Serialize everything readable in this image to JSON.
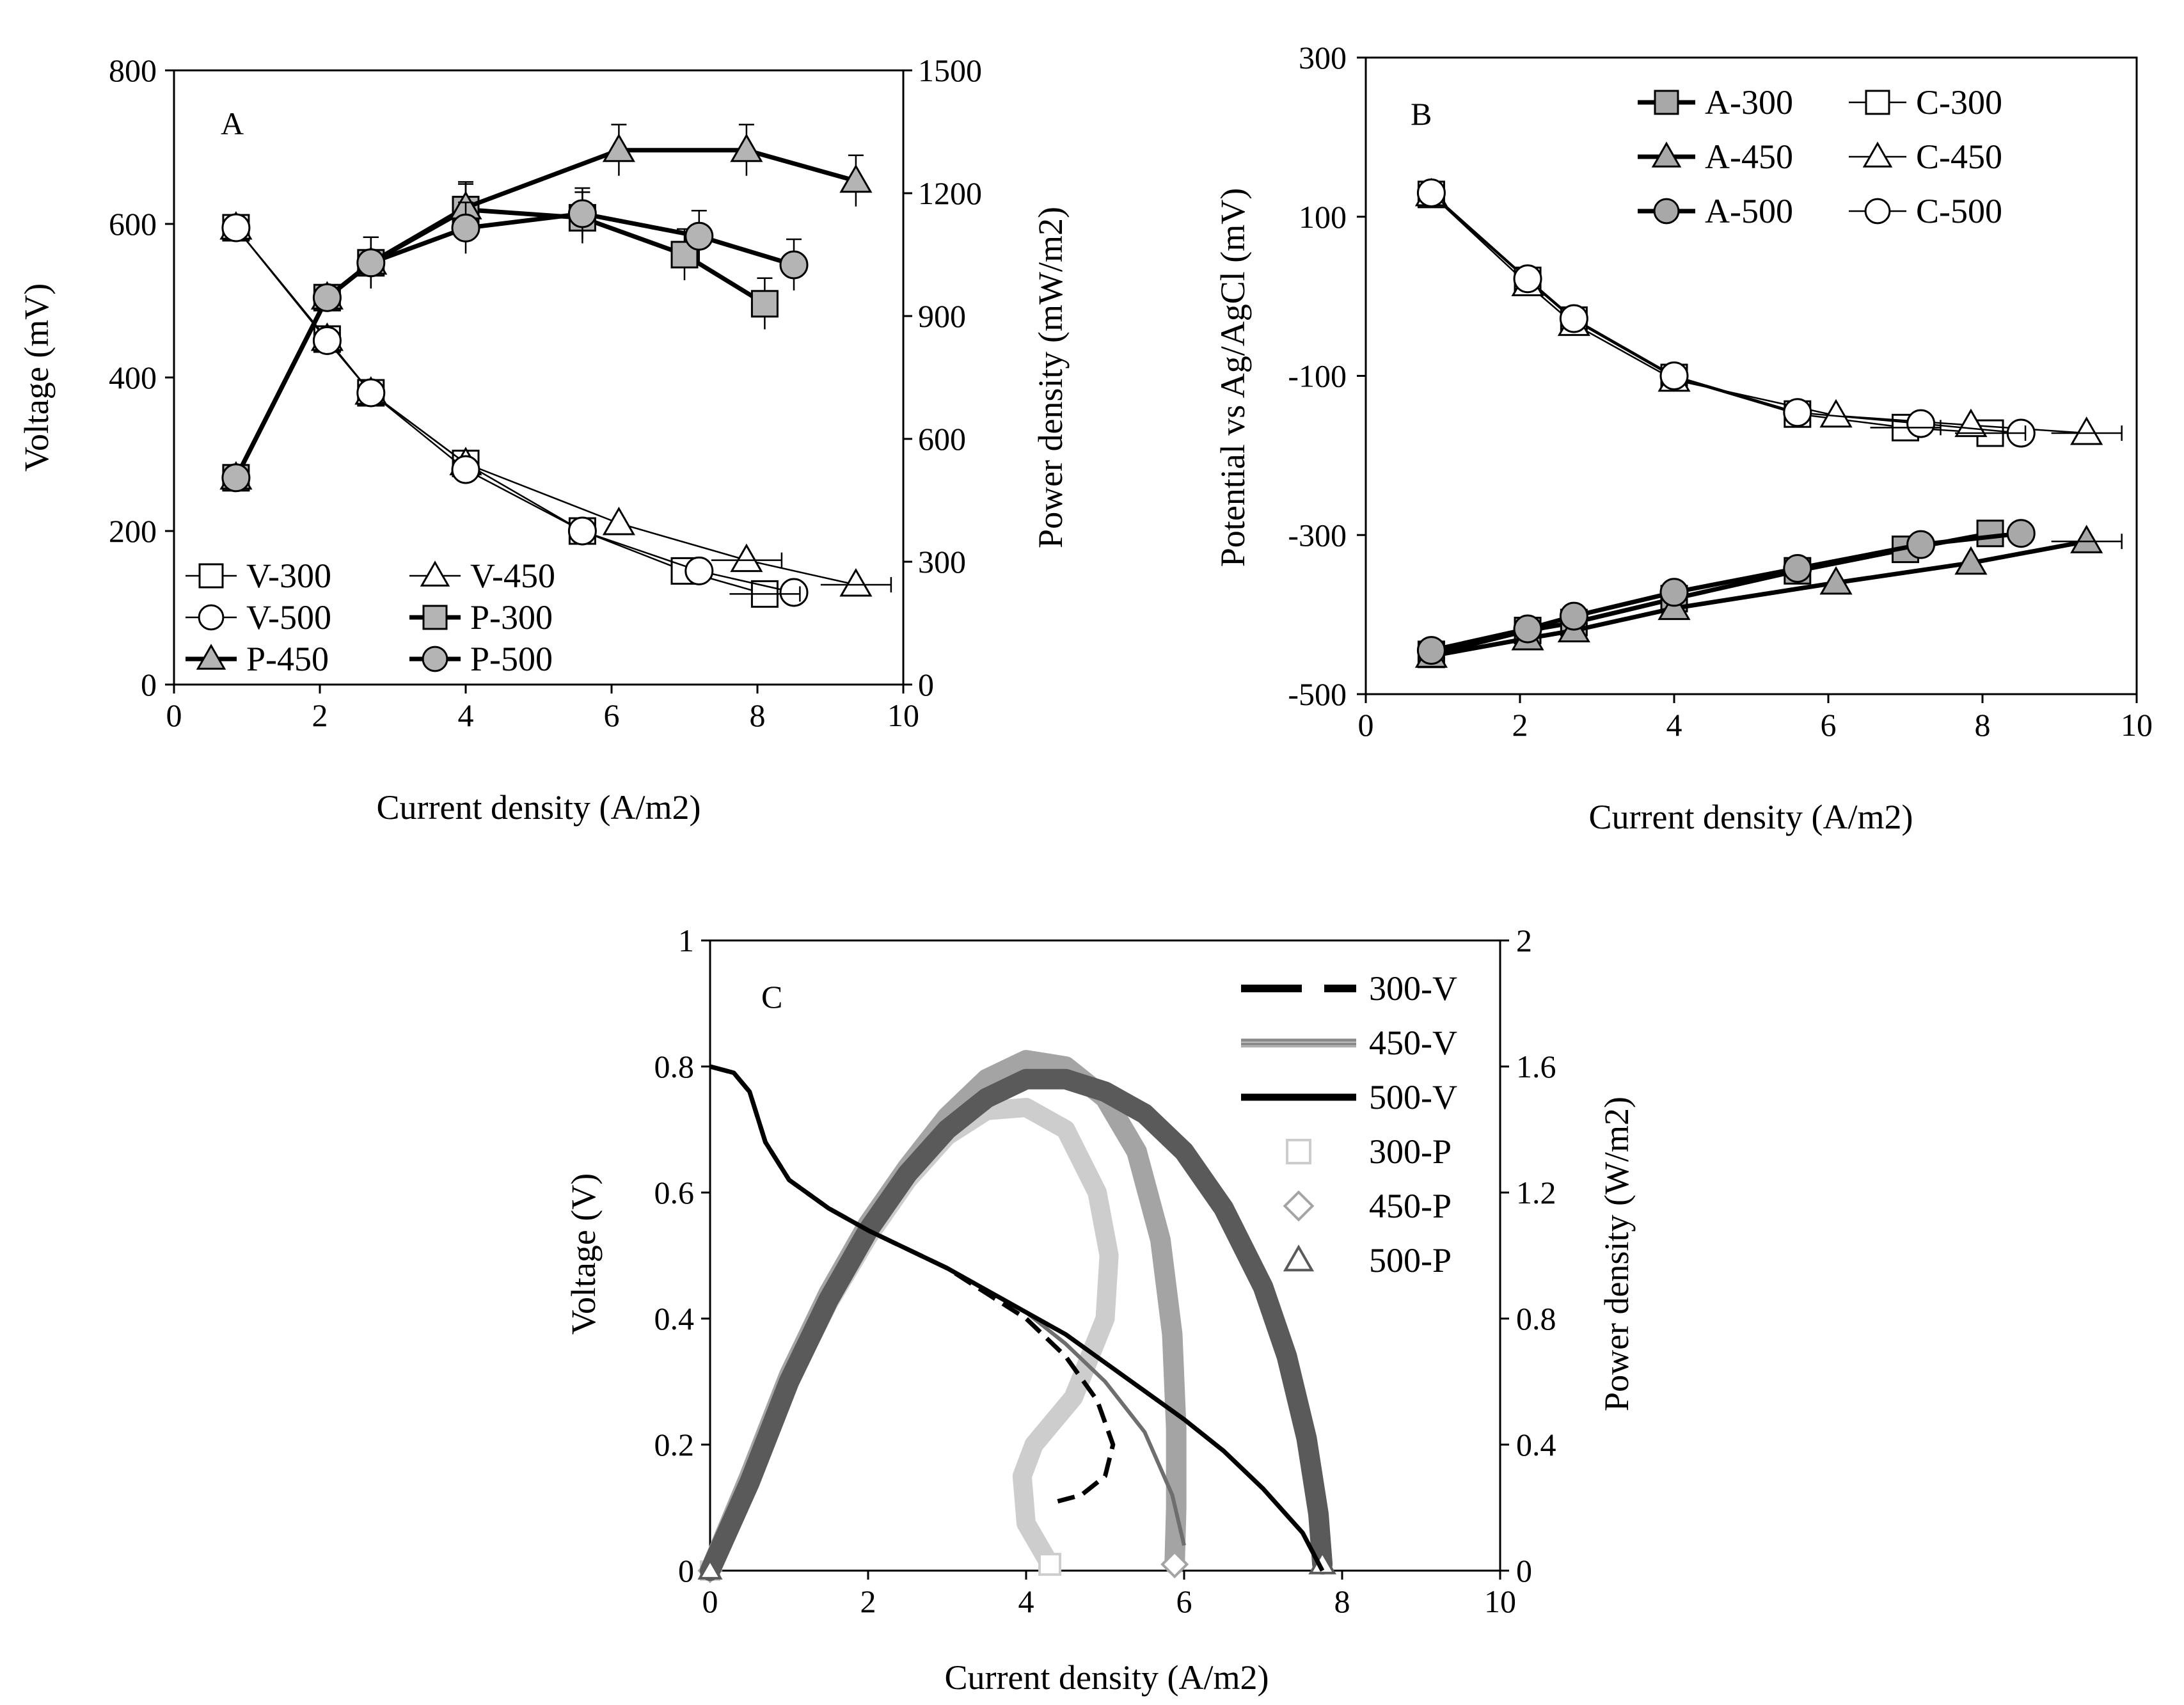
{
  "chart_data": [
    {
      "panel": "A",
      "type": "line",
      "letter": "A",
      "xlabel": "Current density (A/m2)",
      "ylabel_left": "Voltage (mV)",
      "ylabel_right": "Power density (mW/m2)",
      "xlim": [
        0,
        10
      ],
      "ylim_left": [
        0,
        800
      ],
      "ylim_right": [
        0,
        1500
      ],
      "xticks": [
        "0",
        "2",
        "4",
        "6",
        "8",
        "10"
      ],
      "yticks_left": [
        "0",
        "200",
        "400",
        "600",
        "800"
      ],
      "yticks_right": [
        "0",
        "300",
        "600",
        "900",
        "1200",
        "1500"
      ],
      "series": [
        {
          "name": "V-300",
          "axis": "left",
          "marker": "square",
          "fill": "#ffffff",
          "x": [
            0.85,
            2.1,
            2.7,
            4.0,
            5.6,
            7.0,
            8.1
          ],
          "y": [
            595,
            450,
            380,
            288,
            200,
            148,
            118
          ]
        },
        {
          "name": "V-450",
          "axis": "left",
          "marker": "triangle",
          "fill": "#ffffff",
          "x": [
            0.85,
            2.1,
            2.7,
            4.0,
            6.1,
            7.85,
            9.35
          ],
          "y": [
            595,
            450,
            380,
            288,
            210,
            162,
            130
          ]
        },
        {
          "name": "V-500",
          "axis": "left",
          "marker": "circle",
          "fill": "#ffffff",
          "x": [
            0.85,
            2.1,
            2.7,
            4.0,
            5.6,
            7.2,
            8.5
          ],
          "y": [
            595,
            448,
            380,
            280,
            200,
            148,
            120
          ]
        },
        {
          "name": "P-300",
          "axis": "right",
          "marker": "square",
          "fill": "#b4b4b4",
          "x": [
            0.85,
            2.1,
            2.7,
            4.0,
            5.6,
            7.0,
            8.1
          ],
          "y": [
            505,
            945,
            1030,
            1160,
            1140,
            1050,
            930
          ]
        },
        {
          "name": "P-450",
          "axis": "right",
          "marker": "triangle",
          "fill": "#b4b4b4",
          "x": [
            0.85,
            2.1,
            2.7,
            4.0,
            6.1,
            7.85,
            9.35
          ],
          "y": [
            505,
            945,
            1030,
            1165,
            1305,
            1305,
            1230
          ]
        },
        {
          "name": "P-500",
          "axis": "right",
          "marker": "circle",
          "fill": "#b4b4b4",
          "x": [
            0.85,
            2.1,
            2.7,
            4.0,
            5.6,
            7.2,
            8.5
          ],
          "y": [
            505,
            945,
            1030,
            1115,
            1150,
            1095,
            1025
          ]
        }
      ]
    },
    {
      "panel": "B",
      "type": "line",
      "letter": "B",
      "xlabel": "Current density (A/m2)",
      "ylabel": "Potential vs Ag/AgCl (mV)",
      "xlim": [
        0,
        10
      ],
      "ylim": [
        -500,
        300
      ],
      "xticks": [
        "0",
        "2",
        "4",
        "6",
        "8",
        "10"
      ],
      "yticks": [
        "-500",
        "-300",
        "-100",
        "100",
        "300"
      ],
      "series": [
        {
          "name": "A-300",
          "marker": "square",
          "fill": "#a8a8a8",
          "x": [
            0.85,
            2.1,
            2.7,
            4.0,
            5.6,
            7.0,
            8.1
          ],
          "y": [
            -450,
            -420,
            -410,
            -380,
            -345,
            -318,
            -298
          ]
        },
        {
          "name": "C-300",
          "marker": "square",
          "fill": "#ffffff",
          "x": [
            0.85,
            2.1,
            2.7,
            4.0,
            5.6,
            7.0,
            8.1
          ],
          "y": [
            128,
            20,
            -30,
            -102,
            -148,
            -165,
            -172
          ]
        },
        {
          "name": "A-450",
          "marker": "triangle",
          "fill": "#a8a8a8",
          "x": [
            0.85,
            2.1,
            2.7,
            4.0,
            6.1,
            7.85,
            9.35
          ],
          "y": [
            -452,
            -430,
            -420,
            -392,
            -360,
            -335,
            -308
          ]
        },
        {
          "name": "C-450",
          "marker": "triangle",
          "fill": "#ffffff",
          "x": [
            0.85,
            2.1,
            2.7,
            4.0,
            6.1,
            7.85,
            9.35
          ],
          "y": [
            128,
            15,
            -35,
            -105,
            -150,
            -162,
            -172
          ]
        },
        {
          "name": "A-500",
          "marker": "circle",
          "fill": "#a8a8a8",
          "x": [
            0.85,
            2.1,
            2.7,
            4.0,
            5.6,
            7.2,
            8.5
          ],
          "y": [
            -445,
            -418,
            -402,
            -372,
            -342,
            -312,
            -298
          ]
        },
        {
          "name": "C-500",
          "marker": "circle",
          "fill": "#ffffff",
          "x": [
            0.85,
            2.1,
            2.7,
            4.0,
            5.6,
            7.2,
            8.5
          ],
          "y": [
            130,
            22,
            -28,
            -100,
            -146,
            -160,
            -172
          ]
        }
      ]
    },
    {
      "panel": "C",
      "type": "line",
      "letter": "C",
      "xlabel": "Current density (A/m2)",
      "ylabel_left": "Voltage (V)",
      "ylabel_right": "Power density (W/m2)",
      "xlim": [
        0,
        10
      ],
      "ylim_left": [
        0,
        1
      ],
      "ylim_right": [
        0,
        2
      ],
      "xticks": [
        "0",
        "2",
        "4",
        "6",
        "8",
        "10"
      ],
      "yticks_left": [
        "0",
        "0.2",
        "0.4",
        "0.6",
        "0.8",
        "1"
      ],
      "yticks_right": [
        "0",
        "0.4",
        "0.8",
        "1.2",
        "1.6",
        "2"
      ],
      "series": [
        {
          "name": "300-V",
          "axis": "left",
          "color": "#000000",
          "style": "dashed",
          "x": [
            0,
            0.3,
            0.5,
            0.7,
            1.0,
            1.5,
            2.0,
            2.5,
            3.0,
            3.5,
            4.0,
            4.5,
            4.9,
            5.1,
            5.0,
            4.7,
            4.4
          ],
          "y": [
            0.8,
            0.79,
            0.76,
            0.68,
            0.62,
            0.575,
            0.54,
            0.51,
            0.48,
            0.44,
            0.4,
            0.34,
            0.27,
            0.2,
            0.15,
            0.12,
            0.11
          ]
        },
        {
          "name": "450-V",
          "axis": "left",
          "color": "#888888",
          "style": "hatched",
          "x": [
            0,
            0.3,
            0.5,
            0.7,
            1.0,
            1.5,
            2.0,
            2.5,
            3.0,
            3.5,
            4.0,
            4.5,
            5.0,
            5.5,
            5.85,
            6.0
          ],
          "y": [
            0.8,
            0.79,
            0.76,
            0.68,
            0.62,
            0.575,
            0.54,
            0.51,
            0.48,
            0.445,
            0.41,
            0.36,
            0.3,
            0.22,
            0.12,
            0.04
          ]
        },
        {
          "name": "500-V",
          "axis": "left",
          "color": "#000000",
          "style": "solid",
          "x": [
            0,
            0.3,
            0.5,
            0.7,
            1.0,
            1.5,
            2.0,
            2.5,
            3.0,
            3.5,
            4.0,
            4.5,
            5.0,
            5.5,
            6.0,
            6.5,
            7.0,
            7.5,
            7.75
          ],
          "y": [
            0.8,
            0.79,
            0.76,
            0.68,
            0.62,
            0.575,
            0.54,
            0.51,
            0.48,
            0.445,
            0.41,
            0.375,
            0.33,
            0.285,
            0.24,
            0.19,
            0.13,
            0.06,
            0.0
          ]
        },
        {
          "name": "300-P",
          "axis": "right",
          "color": "#cccccc",
          "marker": "square",
          "x": [
            0,
            0.5,
            1.0,
            1.5,
            2.0,
            2.5,
            3.0,
            3.5,
            4.0,
            4.5,
            4.9,
            5.05,
            5.0,
            4.6,
            4.1,
            3.95,
            4.0,
            4.3
          ],
          "y": [
            0.0,
            0.3,
            0.6,
            0.85,
            1.06,
            1.24,
            1.38,
            1.46,
            1.47,
            1.4,
            1.2,
            1.0,
            0.8,
            0.55,
            0.4,
            0.3,
            0.15,
            0.02
          ]
        },
        {
          "name": "450-P",
          "axis": "right",
          "color": "#a0a0a0",
          "marker": "diamond",
          "x": [
            0,
            0.5,
            1.0,
            1.5,
            2.0,
            2.5,
            3.0,
            3.5,
            4.0,
            4.5,
            5.0,
            5.4,
            5.7,
            5.85,
            5.9,
            5.9,
            5.88
          ],
          "y": [
            0.0,
            0.3,
            0.62,
            0.88,
            1.1,
            1.28,
            1.44,
            1.56,
            1.62,
            1.6,
            1.5,
            1.33,
            1.05,
            0.75,
            0.45,
            0.2,
            0.02
          ]
        },
        {
          "name": "500-P",
          "axis": "right",
          "color": "#5a5a5a",
          "marker": "triangle",
          "x": [
            0,
            0.5,
            1.0,
            1.5,
            2.0,
            2.5,
            3.0,
            3.5,
            4.0,
            4.5,
            5.0,
            5.5,
            6.0,
            6.5,
            7.0,
            7.3,
            7.55,
            7.7,
            7.75
          ],
          "y": [
            0.0,
            0.28,
            0.6,
            0.86,
            1.08,
            1.26,
            1.4,
            1.5,
            1.56,
            1.56,
            1.52,
            1.45,
            1.33,
            1.15,
            0.9,
            0.68,
            0.42,
            0.18,
            0.02
          ]
        }
      ]
    }
  ]
}
